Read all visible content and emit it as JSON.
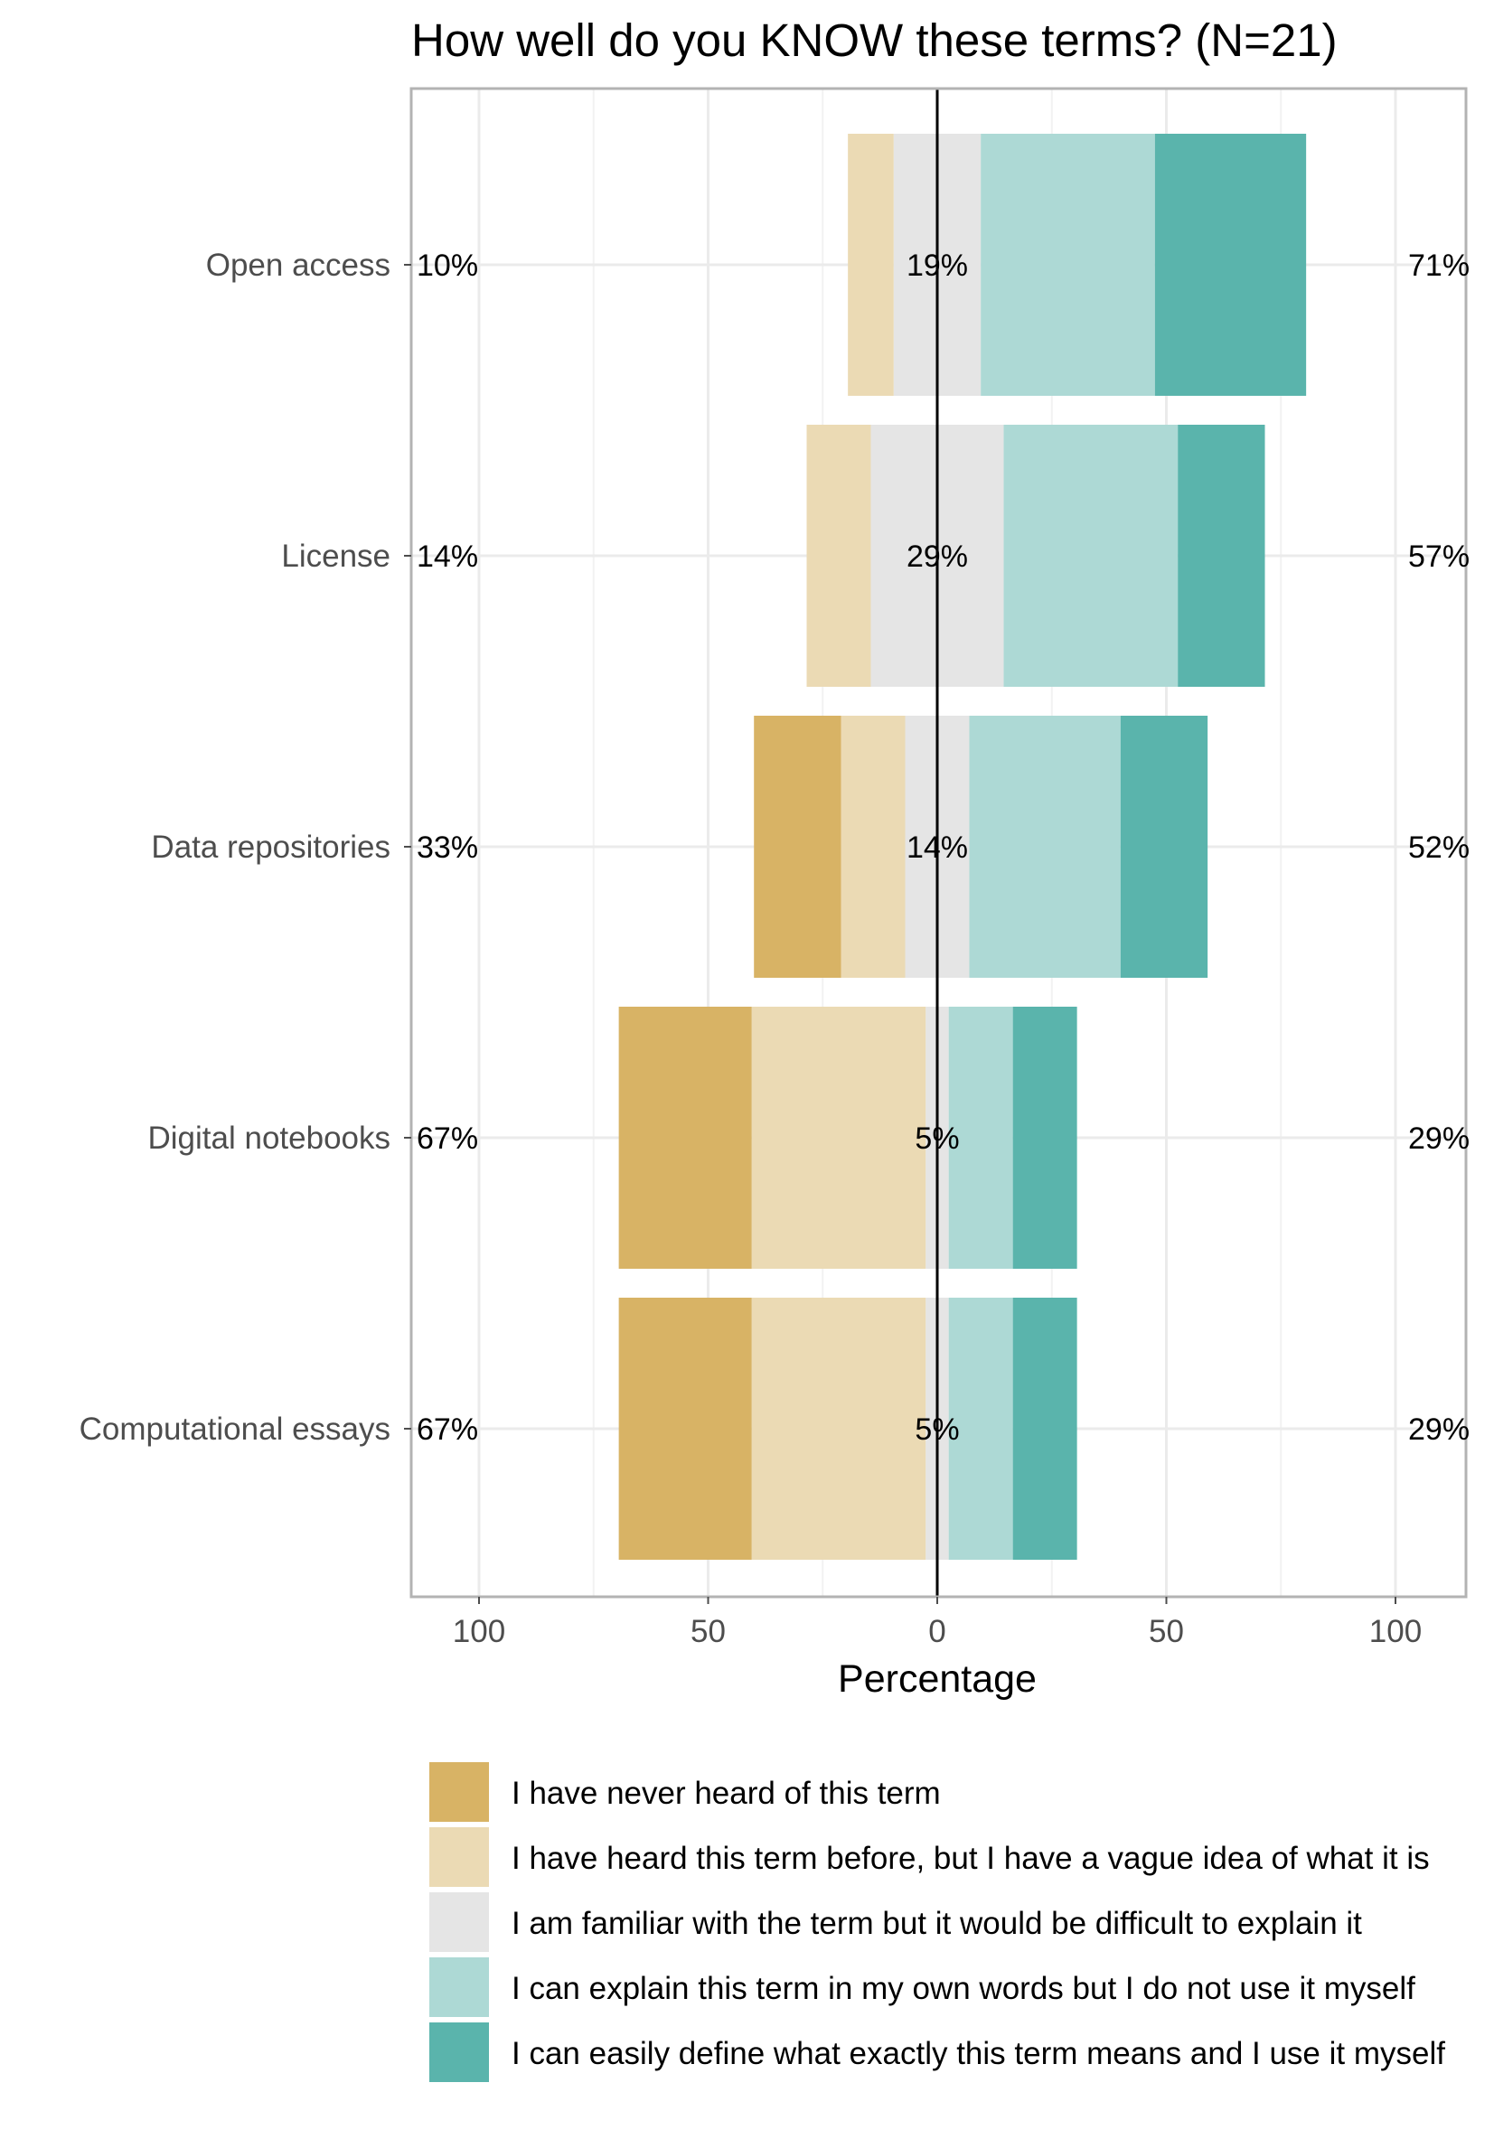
{
  "chart_data": {
    "type": "bar",
    "subtype": "diverging-stacked",
    "title": "How well do you KNOW these terms? (N=21)",
    "xlabel": "Percentage",
    "ylabel": "",
    "xlim": [
      -100,
      100
    ],
    "xticks": [
      {
        "value": -100,
        "label": "100"
      },
      {
        "value": -50,
        "label": "50"
      },
      {
        "value": 0,
        "label": "0"
      },
      {
        "value": 50,
        "label": "50"
      },
      {
        "value": 100,
        "label": "100"
      }
    ],
    "grid": true,
    "legend_position": "bottom",
    "categories": [
      "Open access",
      "License",
      "Data repositories",
      "Digital notebooks",
      "Computational essays"
    ],
    "series": [
      {
        "name": "I have never heard of this term",
        "color": "#D8B365",
        "values": [
          0,
          0,
          19,
          29,
          29
        ]
      },
      {
        "name": "I have heard this term before, but I have a vague idea of what it is",
        "color": "#EBDAB4",
        "values": [
          10,
          14,
          14,
          38,
          38
        ]
      },
      {
        "name": "I am familiar with the term but it would be difficult to explain it",
        "color": "#E5E5E5",
        "values": [
          19,
          29,
          14,
          5,
          5
        ]
      },
      {
        "name": "I can explain this term in my own words but I do not use it myself",
        "color": "#ADD9D5",
        "values": [
          38,
          38,
          33,
          14,
          14
        ]
      },
      {
        "name": "I can easily define what exactly this term means and I use it myself",
        "color": "#5AB4AC",
        "values": [
          33,
          19,
          19,
          14,
          14
        ]
      }
    ],
    "labels_left": [
      "10%",
      "14%",
      "33%",
      "67%",
      "67%"
    ],
    "labels_center": [
      "19%",
      "29%",
      "14%",
      "5%",
      "5%"
    ],
    "labels_right": [
      "71%",
      "57%",
      "52%",
      "29%",
      "29%"
    ]
  }
}
